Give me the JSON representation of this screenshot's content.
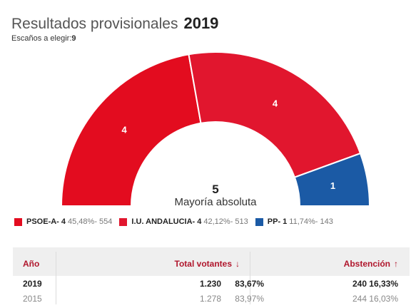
{
  "header": {
    "title": "Resultados provisionales",
    "year": "2019",
    "seats_label": "Escaños a elegir:",
    "seats_value": "9"
  },
  "majority": {
    "value": "5",
    "label": "Mayoría absoluta"
  },
  "chart_data": {
    "type": "pie",
    "total_seats": 9,
    "slices": [
      {
        "party": "PSOE-A",
        "seats": 4,
        "percent": "45,48%",
        "votes": "554",
        "color": "#e30c1f"
      },
      {
        "party": "I.U. ANDALUCIA",
        "seats": 4,
        "percent": "42,12%",
        "votes": "513",
        "color": "#e1162e"
      },
      {
        "party": "PP",
        "seats": 1,
        "percent": "11,74%",
        "votes": "143",
        "color": "#1b5aa5"
      }
    ]
  },
  "legend": [
    {
      "name": "PSOE-A- 4",
      "detail": "45,48%- 554",
      "color": "#e30c1f"
    },
    {
      "name": "I.U. ANDALUCIA- 4",
      "detail": "42,12%- 513",
      "color": "#e1162e"
    },
    {
      "name": "PP- 1",
      "detail": "11,74%- 143",
      "color": "#1b5aa5"
    }
  ],
  "table": {
    "headers": {
      "year": "Año",
      "voters": "Total votantes",
      "abstention": "Abstención"
    },
    "voters_arrow": "↓",
    "abstention_arrow": "↑",
    "rows": [
      {
        "year": "2019",
        "voters": "1.230",
        "voters_pct": "83,67%",
        "abst": "240",
        "abst_pct": "16,33%"
      },
      {
        "year": "2015",
        "voters": "1.278",
        "voters_pct": "83,97%",
        "abst": "244",
        "abst_pct": "16,03%"
      }
    ]
  }
}
